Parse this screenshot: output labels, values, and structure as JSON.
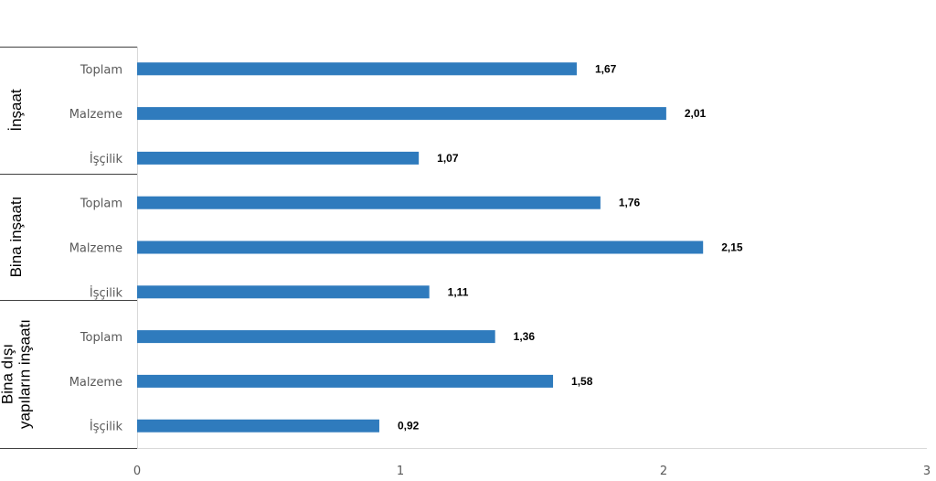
{
  "chart_data": {
    "type": "bar",
    "orientation": "horizontal",
    "bar_color": "#2f7bbd",
    "groups": [
      {
        "label_lines": [
          "İnşaat"
        ],
        "items": [
          {
            "category": "Toplam",
            "value": 1.67,
            "label": "1,67"
          },
          {
            "category": "Malzeme",
            "value": 2.01,
            "label": "2,01"
          },
          {
            "category": "İşçilik",
            "value": 1.07,
            "label": "1,07"
          }
        ]
      },
      {
        "label_lines": [
          "Bina inşaatı"
        ],
        "items": [
          {
            "category": "Toplam",
            "value": 1.76,
            "label": "1,76"
          },
          {
            "category": "Malzeme",
            "value": 2.15,
            "label": "2,15"
          },
          {
            "category": "İşçilik",
            "value": 1.11,
            "label": "1,11"
          }
        ]
      },
      {
        "label_lines": [
          "Bina dışı",
          "yapıların inşaatı"
        ],
        "items": [
          {
            "category": "Toplam",
            "value": 1.36,
            "label": "1,36"
          },
          {
            "category": "Malzeme",
            "value": 1.58,
            "label": "1,58"
          },
          {
            "category": "İşçilik",
            "value": 0.92,
            "label": "0,92"
          }
        ]
      }
    ],
    "xlim": [
      0,
      3
    ],
    "xticks": [
      "0",
      "1",
      "2",
      "3"
    ],
    "grid": false,
    "legend": "none"
  }
}
